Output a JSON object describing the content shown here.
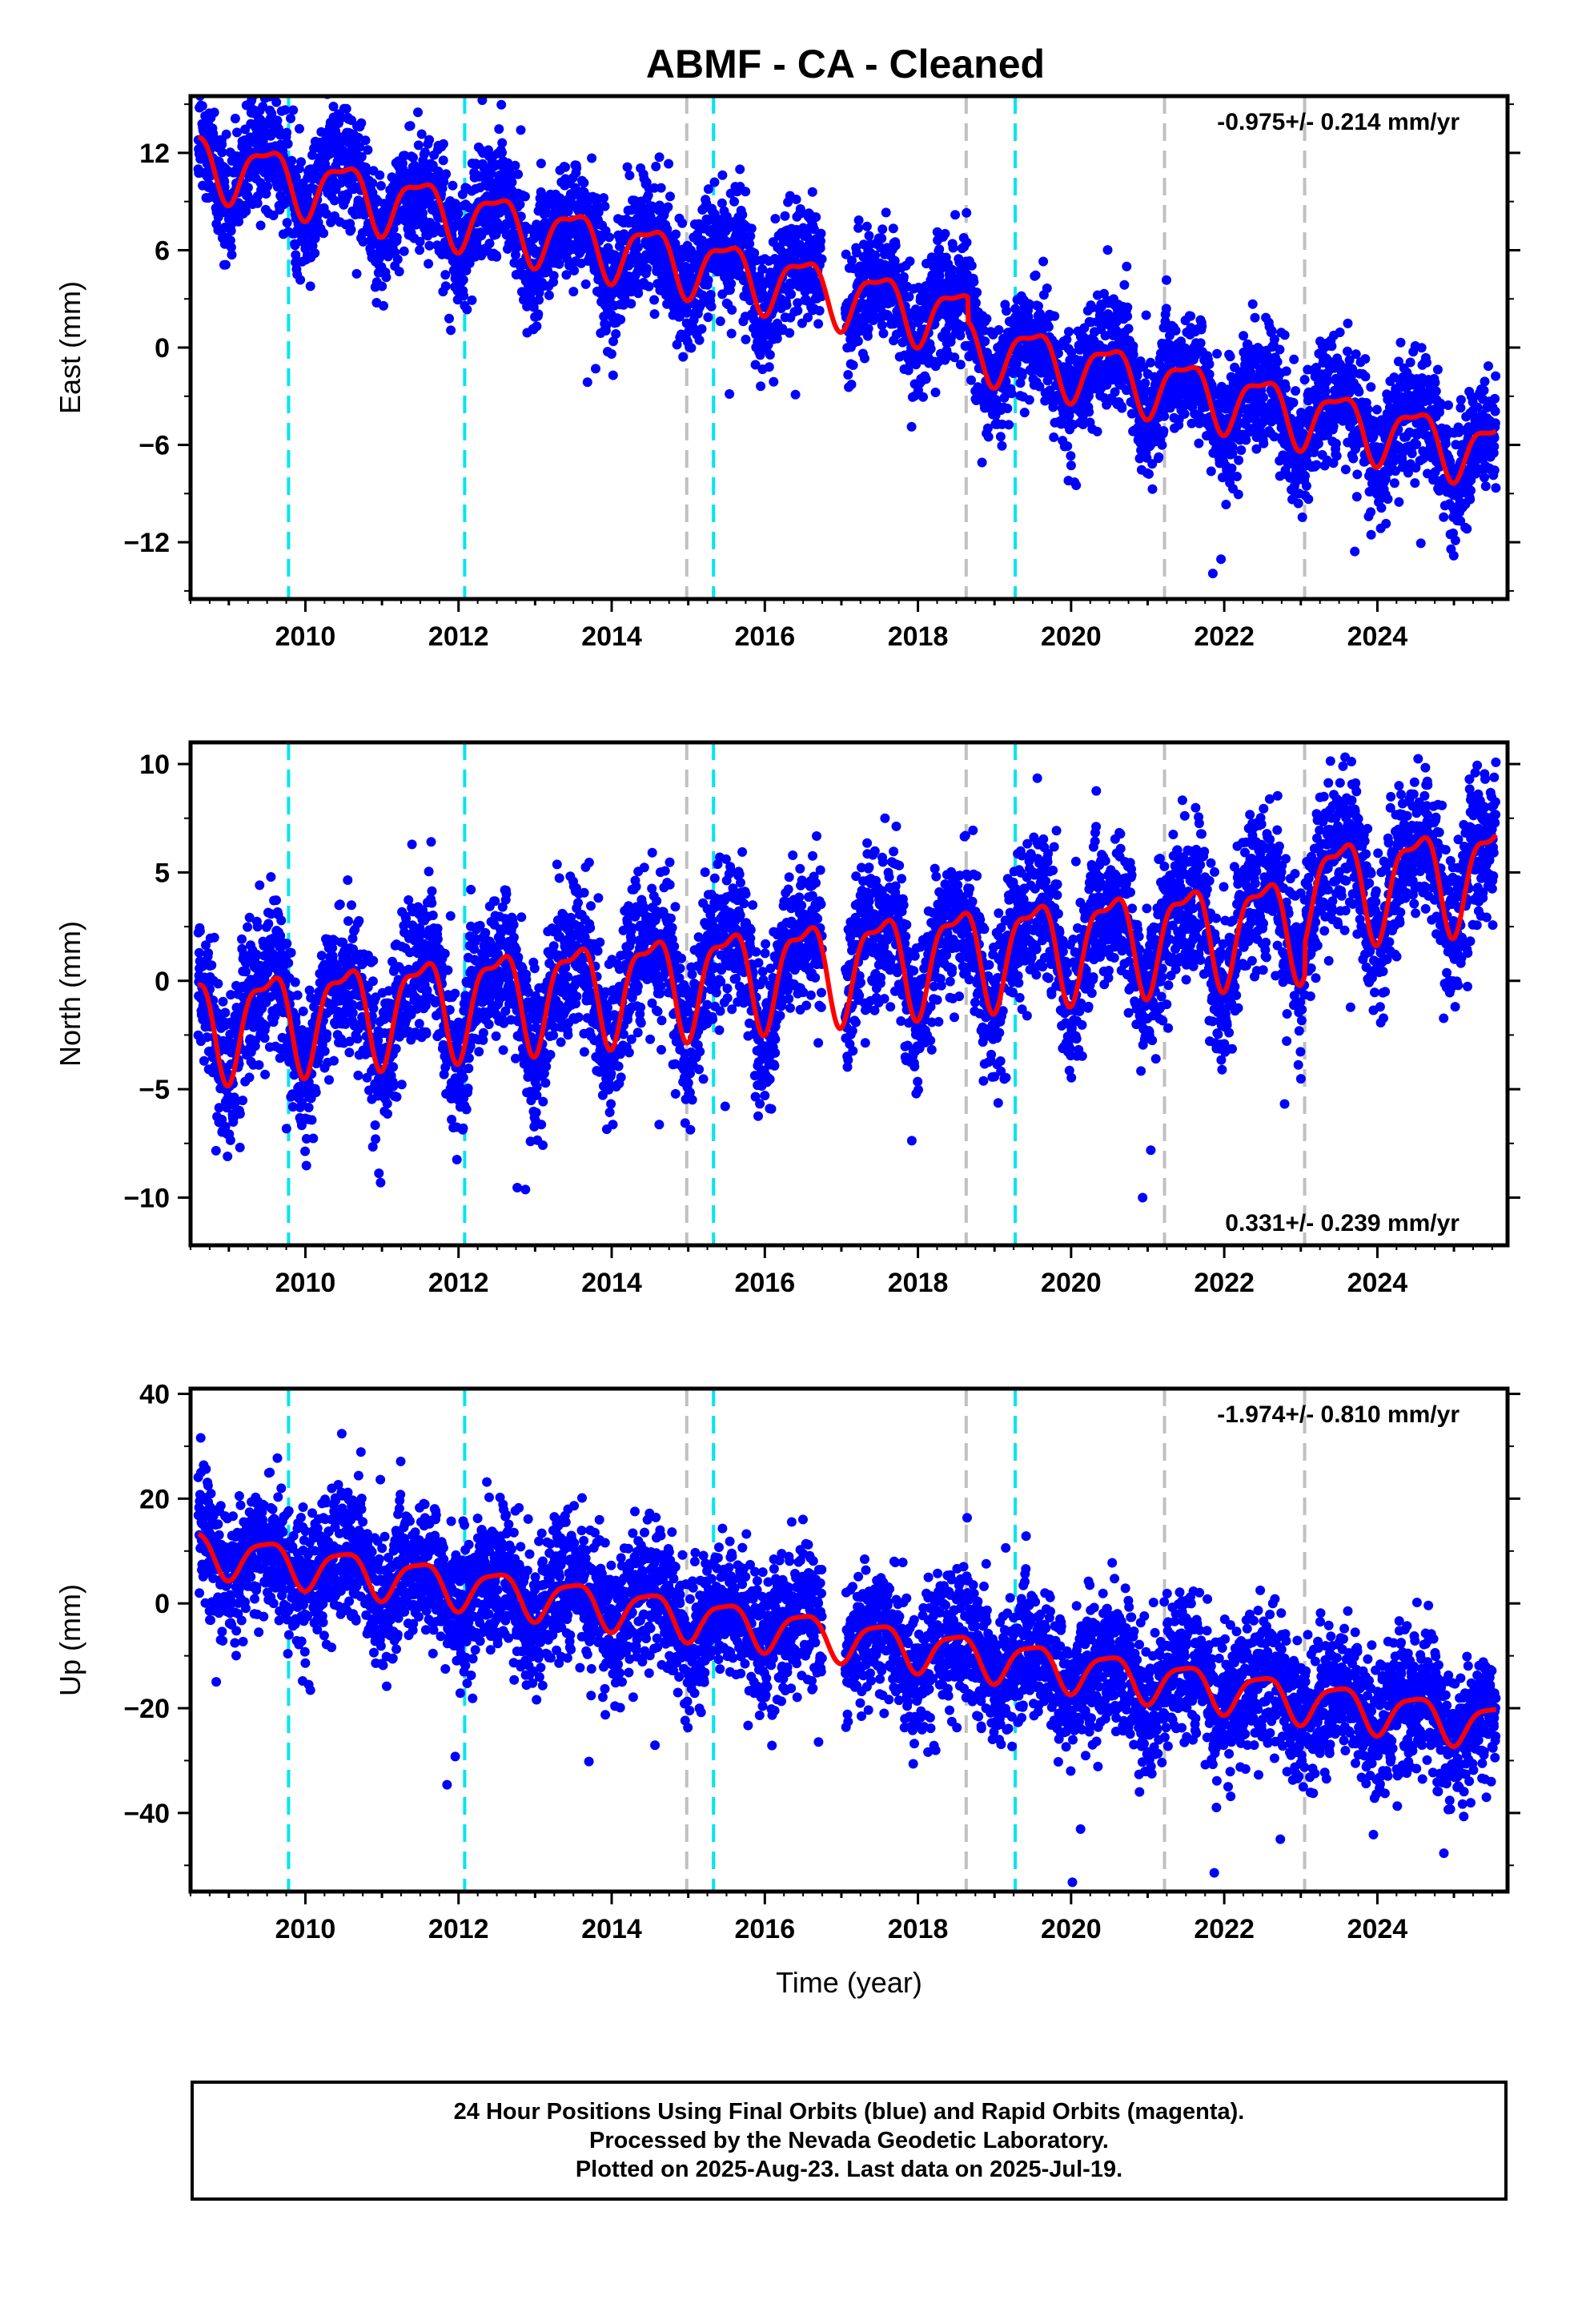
{
  "title": "ABMF  - CA - Cleaned",
  "footer": {
    "line1": "24 Hour Positions Using Final Orbits (blue) and Rapid Orbits (magenta).",
    "line2": "Processed by the Nevada Geodetic Laboratory.",
    "line3": "Plotted on 2025-Aug-23. Last data on 2025-Jul-19."
  },
  "colors": {
    "data_points": "#0000ff",
    "model_fit": "#ff0000",
    "equipment_change": "#00e5ee",
    "other_event": "#c0c0c0"
  },
  "chart_data": [
    {
      "type": "scatter",
      "component": "East",
      "ylabel": "East (mm)",
      "xlabel": "",
      "velocity": "-0.975+/- 0.214 mm/yr",
      "velocity_position": "top-right",
      "xlim": [
        2008.5,
        2025.7
      ],
      "ylim": [
        -15.5,
        15.5
      ],
      "yticks": [
        12,
        6,
        0,
        -6,
        -12
      ],
      "xticks": [
        2010,
        2012,
        2014,
        2016,
        2018,
        2020,
        2022,
        2024
      ],
      "trend": {
        "start_year": 2008.6,
        "start_value": 11.5,
        "rate": -0.975
      },
      "seasonal": {
        "annual_amplitude": 1.8,
        "semiannual_amplitude": 0.6
      },
      "offsets": [
        {
          "year": 2018.65,
          "value": -1.5
        }
      ],
      "scatter_sigma": 1.8,
      "data_gap": [
        2016.75,
        2017.05
      ],
      "series": [
        {
          "name": "24 Hour Positions (blue)",
          "kind": "points"
        },
        {
          "name": "model fit",
          "kind": "line"
        }
      ]
    },
    {
      "type": "scatter",
      "component": "North",
      "ylabel": "North (mm)",
      "xlabel": "",
      "velocity": "0.331+/- 0.239 mm/yr",
      "velocity_position": "bottom-right",
      "xlim": [
        2008.5,
        2025.7
      ],
      "ylim": [
        -12.2,
        11
      ],
      "yticks": [
        10,
        5,
        0,
        -5,
        -10
      ],
      "xticks": [
        2010,
        2012,
        2014,
        2016,
        2018,
        2020,
        2022,
        2024
      ],
      "trend": {
        "start_year": 2008.6,
        "start_value": -2.0,
        "rate": 0.331
      },
      "seasonal": {
        "annual_amplitude": 2.2,
        "semiannual_amplitude": 0.8
      },
      "offsets": [
        {
          "year": 2023.05,
          "value": 1.5
        }
      ],
      "scatter_sigma": 1.7,
      "data_gap": [
        2016.75,
        2017.05
      ],
      "series": [
        {
          "name": "24 Hour Positions (blue)",
          "kind": "points"
        },
        {
          "name": "model fit",
          "kind": "line"
        }
      ]
    },
    {
      "type": "scatter",
      "component": "Up",
      "ylabel": "Up (mm)",
      "xlabel": "Time (year)",
      "velocity": "-1.974+/- 0.810 mm/yr",
      "velocity_position": "top-right",
      "xlim": [
        2008.5,
        2025.7
      ],
      "ylim": [
        -55,
        41
      ],
      "yticks": [
        40,
        20,
        0,
        -20,
        -40
      ],
      "xticks": [
        2010,
        2012,
        2014,
        2016,
        2018,
        2020,
        2022,
        2024
      ],
      "trend": {
        "start_year": 2008.6,
        "start_value": 10.0,
        "rate": -1.974
      },
      "seasonal": {
        "annual_amplitude": 4.0,
        "semiannual_amplitude": 1.0
      },
      "offsets": [],
      "scatter_sigma": 6.5,
      "data_gap": [
        2016.75,
        2017.05
      ],
      "series": [
        {
          "name": "24 Hour Positions (blue)",
          "kind": "points"
        },
        {
          "name": "model fit",
          "kind": "line"
        }
      ]
    }
  ],
  "events": {
    "equipment_change": [
      2009.78,
      2012.08,
      2015.33,
      2019.27
    ],
    "other": [
      2014.98,
      2018.63,
      2021.22,
      2023.05
    ]
  }
}
